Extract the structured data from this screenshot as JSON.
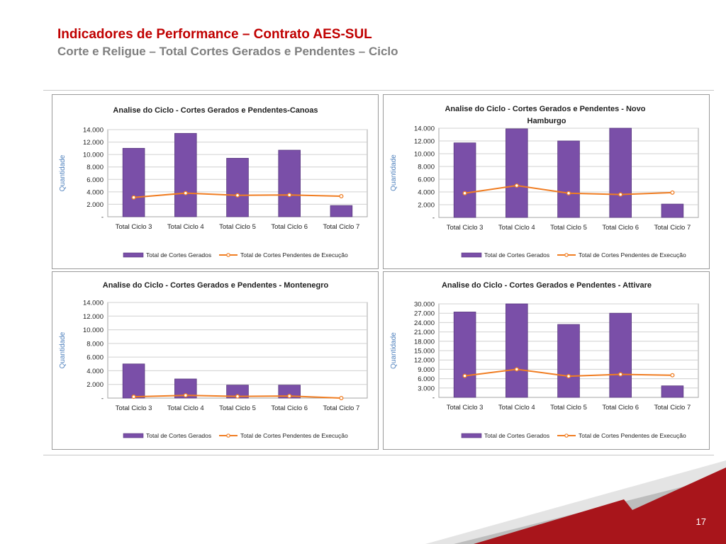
{
  "slide": {
    "title": "Indicadores de Performance – Contrato AES-SUL",
    "subtitle": "Corte e Religue – Total Cortes Gerados e Pendentes – Ciclo",
    "page_number": "17"
  },
  "colors": {
    "title": "#c00000",
    "subtitle": "#7f7f7f",
    "bar": "#7a4fa8",
    "line": "#f07d22",
    "axis_title": "#4f81bd",
    "decor_red": "#a8151b"
  },
  "chart_data": [
    {
      "type": "bar",
      "title": "Analise do Ciclo - Cortes Gerados e Pendentes-Canoas",
      "ylabel": "Quantidade",
      "xlabel": "",
      "categories": [
        "Total Ciclo 3",
        "Total Ciclo 4",
        "Total Ciclo 5",
        "Total Ciclo 6",
        "Total Ciclo 7"
      ],
      "series": [
        {
          "name": "Total de Cortes Gerados",
          "type": "bar",
          "values": [
            11000,
            13400,
            9400,
            10700,
            1800
          ]
        },
        {
          "name": "Total de Cortes Pendentes de Execução",
          "type": "line",
          "values": [
            3100,
            3800,
            3450,
            3500,
            3300
          ]
        }
      ],
      "ylim": [
        0,
        14000
      ],
      "yticks": [
        "-",
        "2.000",
        "4.000",
        "6.000",
        "8.000",
        "10.000",
        "12.000",
        "14.000"
      ],
      "grid": true,
      "legend": "bottom"
    },
    {
      "type": "bar",
      "title": "Analise do Ciclo - Cortes Gerados e Pendentes - Novo Hamburgo",
      "ylabel": "Quantidade",
      "xlabel": "",
      "categories": [
        "Total Ciclo 3",
        "Total Ciclo 4",
        "Total Ciclo 5",
        "Total Ciclo 6",
        "Total Ciclo 7"
      ],
      "series": [
        {
          "name": "Total de Cortes Gerados",
          "type": "bar",
          "values": [
            11700,
            13900,
            12000,
            14000,
            2100
          ]
        },
        {
          "name": "Total de Cortes Pendentes de Execução",
          "type": "line",
          "values": [
            3800,
            5000,
            3800,
            3600,
            3900
          ]
        }
      ],
      "ylim": [
        0,
        14000
      ],
      "yticks": [
        "-",
        "2.000",
        "4.000",
        "6.000",
        "8.000",
        "10.000",
        "12.000",
        "14.000"
      ],
      "grid": true,
      "legend": "bottom"
    },
    {
      "type": "bar",
      "title": "Analise do Ciclo - Cortes Gerados e Pendentes - Montenegro",
      "ylabel": "Quantidade",
      "xlabel": "",
      "categories": [
        "Total Ciclo 3",
        "Total Ciclo 4",
        "Total Ciclo 5",
        "Total Ciclo 6",
        "Total Ciclo 7"
      ],
      "series": [
        {
          "name": "Total de Cortes Gerados",
          "type": "bar",
          "values": [
            5000,
            2800,
            1900,
            1900,
            0
          ]
        },
        {
          "name": "Total de Cortes Pendentes de Execução",
          "type": "line",
          "values": [
            200,
            400,
            250,
            300,
            0
          ]
        }
      ],
      "ylim": [
        0,
        14000
      ],
      "yticks": [
        "-",
        "2.000",
        "4.000",
        "6.000",
        "8.000",
        "10.000",
        "12.000",
        "14.000"
      ],
      "grid": true,
      "legend": "bottom"
    },
    {
      "type": "bar",
      "title": "Analise do Ciclo - Cortes Gerados e Pendentes - Attivare",
      "ylabel": "Quantidade",
      "xlabel": "",
      "categories": [
        "Total Ciclo 3",
        "Total Ciclo 4",
        "Total Ciclo 5",
        "Total Ciclo 6",
        "Total Ciclo 7"
      ],
      "series": [
        {
          "name": "Total de Cortes Gerados",
          "type": "bar",
          "values": [
            27400,
            30000,
            23400,
            27000,
            3700
          ]
        },
        {
          "name": "Total de Cortes Pendentes de Execução",
          "type": "line",
          "values": [
            6900,
            9000,
            6800,
            7400,
            7100
          ]
        }
      ],
      "ylim": [
        0,
        30000
      ],
      "yticks": [
        "-",
        "3.000",
        "6.000",
        "9.000",
        "12.000",
        "15.000",
        "18.000",
        "21.000",
        "24.000",
        "27.000",
        "30.000"
      ],
      "grid": true,
      "legend": "bottom"
    }
  ]
}
